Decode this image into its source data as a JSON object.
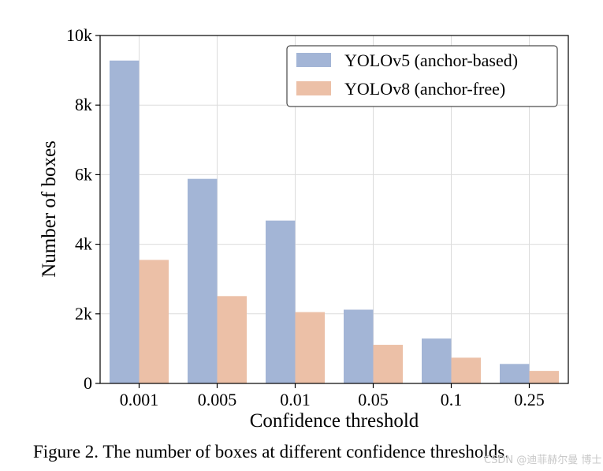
{
  "chart_data": {
    "type": "bar",
    "categories": [
      "0.001",
      "0.005",
      "0.01",
      "0.05",
      "0.1",
      "0.25"
    ],
    "series": [
      {
        "name": "YOLOv5 (anchor-based)",
        "values": [
          9280,
          5880,
          4680,
          2120,
          1290,
          560
        ],
        "color": "#a3b5d6"
      },
      {
        "name": "YOLOv8 (anchor-free)",
        "values": [
          3550,
          2510,
          2050,
          1110,
          740,
          360
        ],
        "color": "#ecc0a7"
      }
    ],
    "xlabel": "Confidence threshold",
    "ylabel": "Number of boxes",
    "ylim": [
      0,
      10000
    ],
    "yticks": [
      0,
      2000,
      4000,
      6000,
      8000,
      10000
    ],
    "ytick_labels": [
      "0",
      "2k",
      "4k",
      "6k",
      "8k",
      "10k"
    ],
    "grid": true,
    "legend_position": "top-right"
  },
  "caption": "Figure 2. The number of boxes at different confidence thresholds.",
  "watermark": "CSDN @迪菲赫尔曼 博士",
  "colors": {
    "grid": "#dcdcdc",
    "axis": "#000000"
  }
}
